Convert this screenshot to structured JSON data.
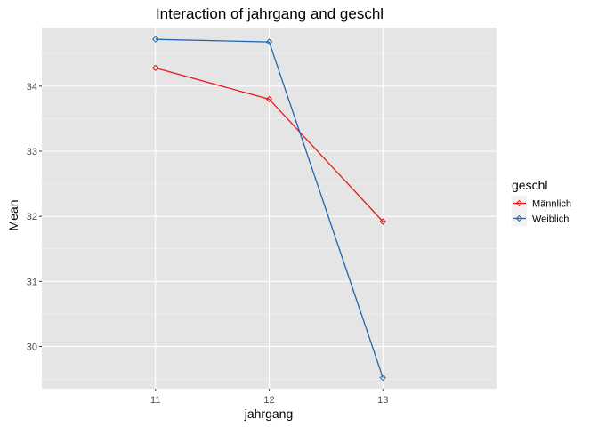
{
  "chart_data": {
    "type": "line",
    "title": "Interaction of  jahrgang and geschl",
    "xlabel": "jahrgang",
    "ylabel": "Mean",
    "categories": [
      "11",
      "12",
      "13"
    ],
    "yticks": [
      30,
      31,
      32,
      33,
      34
    ],
    "ylim": [
      29.35,
      34.9
    ],
    "grid": true,
    "legend": {
      "title": "geschl",
      "placement": "right"
    },
    "series": [
      {
        "name": "Männlich",
        "color": "#e31a1c",
        "values": [
          34.28,
          33.8,
          31.92
        ]
      },
      {
        "name": "Weiblich",
        "color": "#2166ac",
        "values": [
          34.72,
          34.68,
          29.52
        ]
      }
    ],
    "marker": "open-diamond"
  }
}
